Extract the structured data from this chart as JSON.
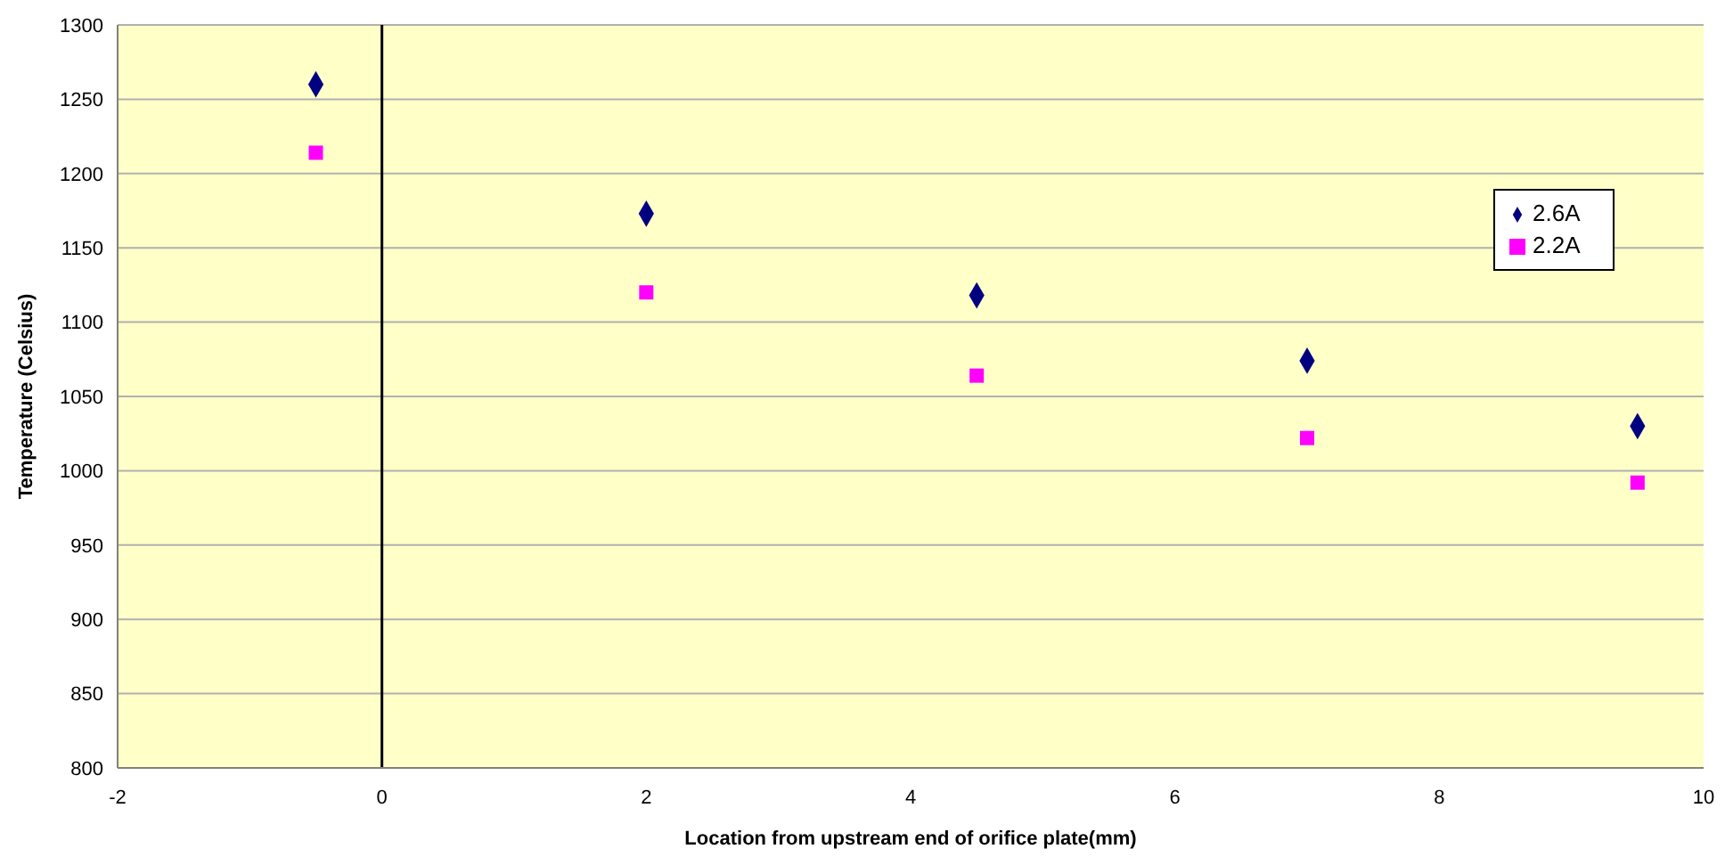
{
  "chart_data": {
    "type": "scatter",
    "xlabel": "Location from upstream end of orifice plate(mm)",
    "ylabel": "Temperature (Celsius)",
    "x": [
      -0.5,
      2,
      4.5,
      7,
      9.5
    ],
    "series": [
      {
        "name": "2.6A",
        "color": "#000080",
        "marker": "diamond",
        "values": [
          1260,
          1173,
          1118,
          1074,
          1030
        ]
      },
      {
        "name": "2.2A",
        "color": "#ff00ff",
        "marker": "square",
        "values": [
          1214,
          1120,
          1064,
          1022,
          992
        ]
      }
    ],
    "xlim": [
      -2,
      10
    ],
    "xticks": [
      -2,
      0,
      2,
      4,
      6,
      8,
      10
    ],
    "ylim": [
      800,
      1300
    ],
    "yticks": [
      800,
      850,
      900,
      950,
      1000,
      1050,
      1100,
      1150,
      1200,
      1250,
      1300
    ],
    "grid": "y",
    "legend": "top right",
    "ref_lines": [
      {
        "axis": "x",
        "value": 0,
        "color": "#000000"
      }
    ]
  }
}
